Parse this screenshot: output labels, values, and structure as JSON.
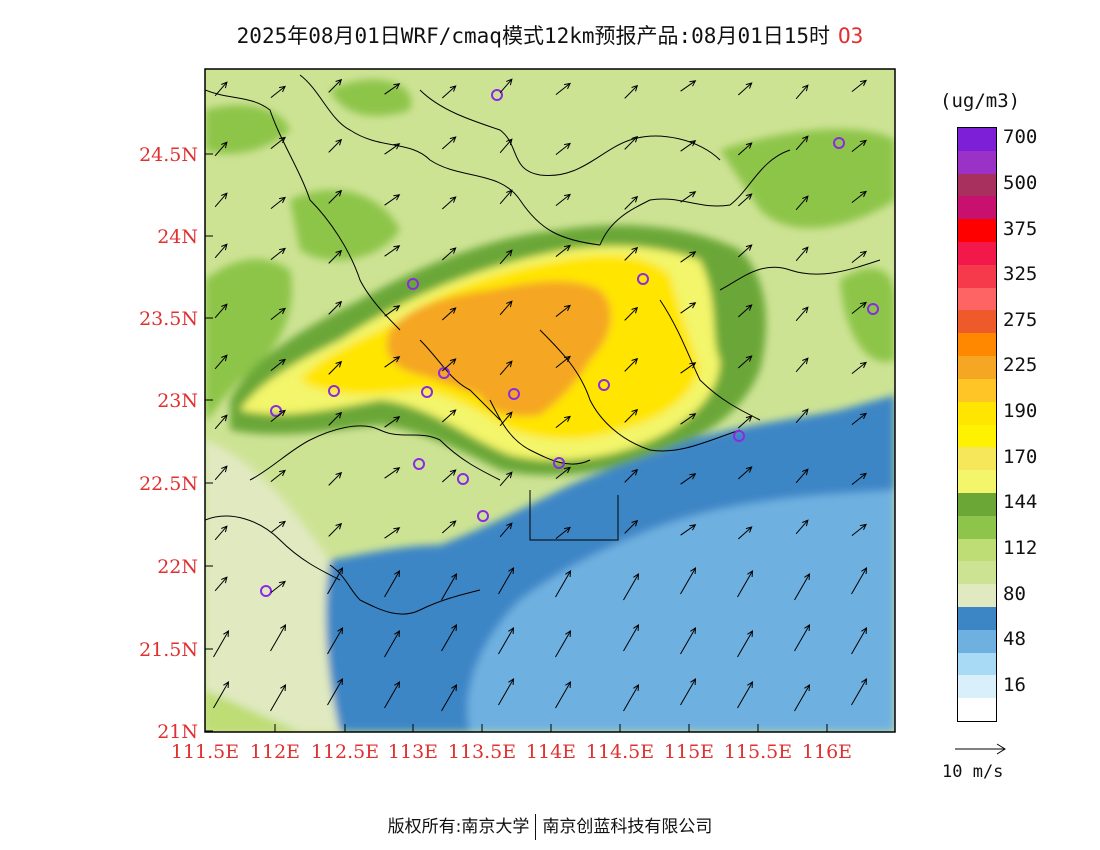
{
  "title": {
    "text": "2025年08月01日WRF/cmaq模式12km预报产品:08月01日15时",
    "species": "O3"
  },
  "map": {
    "lat_labels": [
      "24.5N",
      "24N",
      "23.5N",
      "23N",
      "22.5N",
      "22N",
      "21.5N",
      "21N"
    ],
    "lon_labels": [
      "111.5E",
      "112E",
      "112.5E",
      "113E",
      "113.5E",
      "114E",
      "114.5E",
      "115E",
      "115.5E",
      "116E"
    ],
    "axis_label_color": "#e03030",
    "station_marker_color": "#8a2be2",
    "wind_vector_color": "#000000"
  },
  "legend": {
    "units": "(ug/m3)",
    "bins": [
      {
        "color": "#7c1fd6",
        "label": "700"
      },
      {
        "color": "#9b32c8",
        "label": ""
      },
      {
        "color": "#a8305e",
        "label": "500"
      },
      {
        "color": "#c8106e",
        "label": ""
      },
      {
        "color": "#ff0000",
        "label": "375"
      },
      {
        "color": "#f2184a",
        "label": ""
      },
      {
        "color": "#f63a4c",
        "label": "325"
      },
      {
        "color": "#ff6464",
        "label": ""
      },
      {
        "color": "#ee5a2a",
        "label": "275"
      },
      {
        "color": "#ff8800",
        "label": ""
      },
      {
        "color": "#f5a623",
        "label": "225"
      },
      {
        "color": "#ffc425",
        "label": ""
      },
      {
        "color": "#ffe500",
        "label": "190"
      },
      {
        "color": "#fff200",
        "label": ""
      },
      {
        "color": "#f5e65a",
        "label": "170"
      },
      {
        "color": "#f3f56a",
        "label": ""
      },
      {
        "color": "#6aa737",
        "label": "144"
      },
      {
        "color": "#8dc54a",
        "label": ""
      },
      {
        "color": "#bedd74",
        "label": "112"
      },
      {
        "color": "#cde394",
        "label": ""
      },
      {
        "color": "#e0e9c0",
        "label": "80"
      },
      {
        "color": "#3d86c6",
        "label": ""
      },
      {
        "color": "#6eb0e0",
        "label": "48"
      },
      {
        "color": "#a8daf6",
        "label": ""
      },
      {
        "color": "#d9effa",
        "label": "16"
      },
      {
        "color": "#ffffff",
        "label": ""
      }
    ]
  },
  "wind_reference": {
    "label": "10 m/s"
  },
  "footer": {
    "left": "版权所有:南京大学",
    "right": "南京创蓝科技有限公司"
  }
}
